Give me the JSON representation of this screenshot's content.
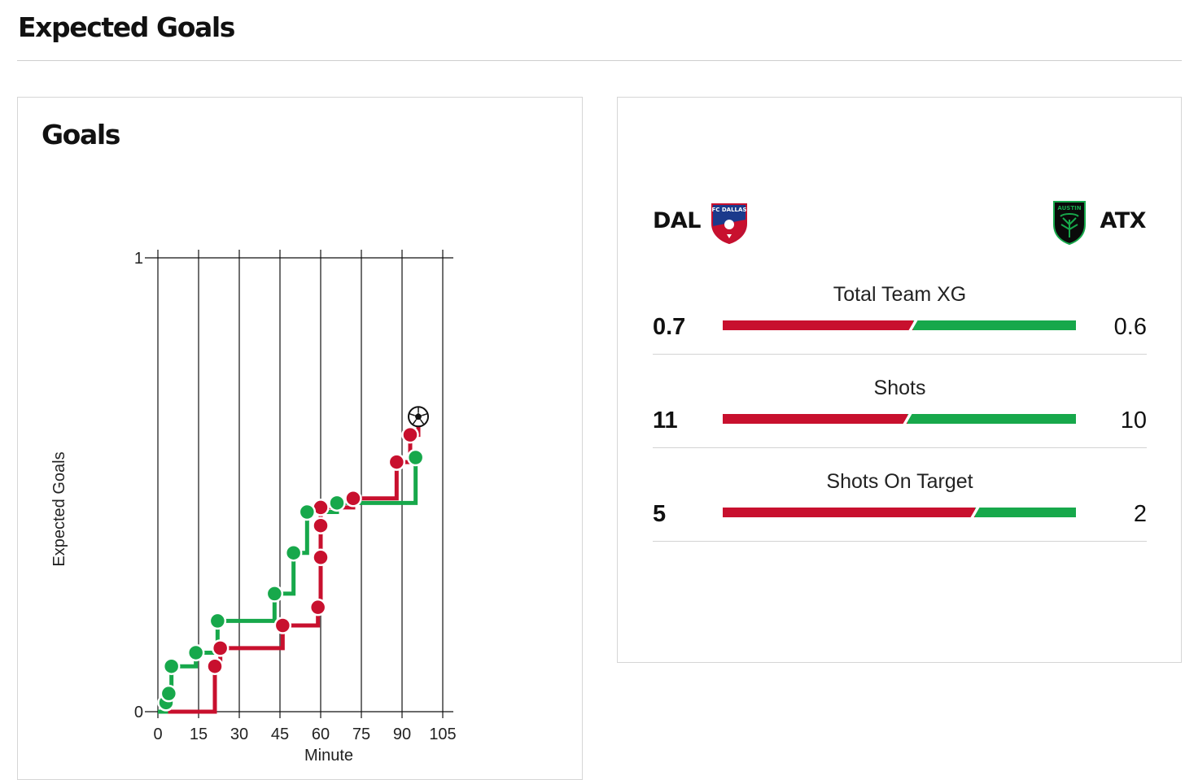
{
  "header": {
    "title": "Expected Goals"
  },
  "goals_card": {
    "title": "Goals"
  },
  "chart_data": {
    "type": "line",
    "step": true,
    "xlabel": "Minute",
    "ylabel": "Expected Goals",
    "xlim": [
      0,
      105
    ],
    "ylim": [
      0,
      1
    ],
    "x_ticks": [
      0,
      15,
      30,
      45,
      60,
      75,
      90,
      105
    ],
    "y_ticks": [
      0,
      1
    ],
    "grid": "vertical",
    "series": [
      {
        "team": "DAL",
        "color": "#c8102e",
        "points": [
          {
            "x": 21,
            "y": 0.1
          },
          {
            "x": 23,
            "y": 0.14
          },
          {
            "x": 46,
            "y": 0.19
          },
          {
            "x": 59,
            "y": 0.23
          },
          {
            "x": 60,
            "y": 0.34
          },
          {
            "x": 60,
            "y": 0.41
          },
          {
            "x": 60,
            "y": 0.45
          },
          {
            "x": 72,
            "y": 0.47
          },
          {
            "x": 88,
            "y": 0.55
          },
          {
            "x": 93,
            "y": 0.61
          },
          {
            "x": 96,
            "y": 0.65,
            "goal": true
          }
        ],
        "end": {
          "x": 98,
          "y": 0.65
        }
      },
      {
        "team": "ATX",
        "color": "#17a84b",
        "points": [
          {
            "x": 3,
            "y": 0.02
          },
          {
            "x": 4,
            "y": 0.04
          },
          {
            "x": 5,
            "y": 0.1
          },
          {
            "x": 14,
            "y": 0.13
          },
          {
            "x": 22,
            "y": 0.2
          },
          {
            "x": 43,
            "y": 0.26
          },
          {
            "x": 50,
            "y": 0.35
          },
          {
            "x": 55,
            "y": 0.44
          },
          {
            "x": 66,
            "y": 0.46
          },
          {
            "x": 95,
            "y": 0.56
          }
        ],
        "end": {
          "x": 98,
          "y": 0.56
        }
      }
    ]
  },
  "teams": {
    "home": {
      "abbr": "DAL",
      "crest": "fc-dallas-crest",
      "crest_text": "FC DALLAS",
      "color": "#c8102e"
    },
    "away": {
      "abbr": "ATX",
      "crest": "austin-fc-crest",
      "crest_text": "AUSTIN",
      "color": "#17a84b"
    }
  },
  "stats": [
    {
      "label": "Total Team XG",
      "home": "0.7",
      "away": "0.6",
      "home_value": 0.7,
      "away_value": 0.6
    },
    {
      "label": "Shots",
      "home": "11",
      "away": "10",
      "home_value": 11,
      "away_value": 10
    },
    {
      "label": "Shots On Target",
      "home": "5",
      "away": "2",
      "home_value": 5,
      "away_value": 2
    }
  ]
}
